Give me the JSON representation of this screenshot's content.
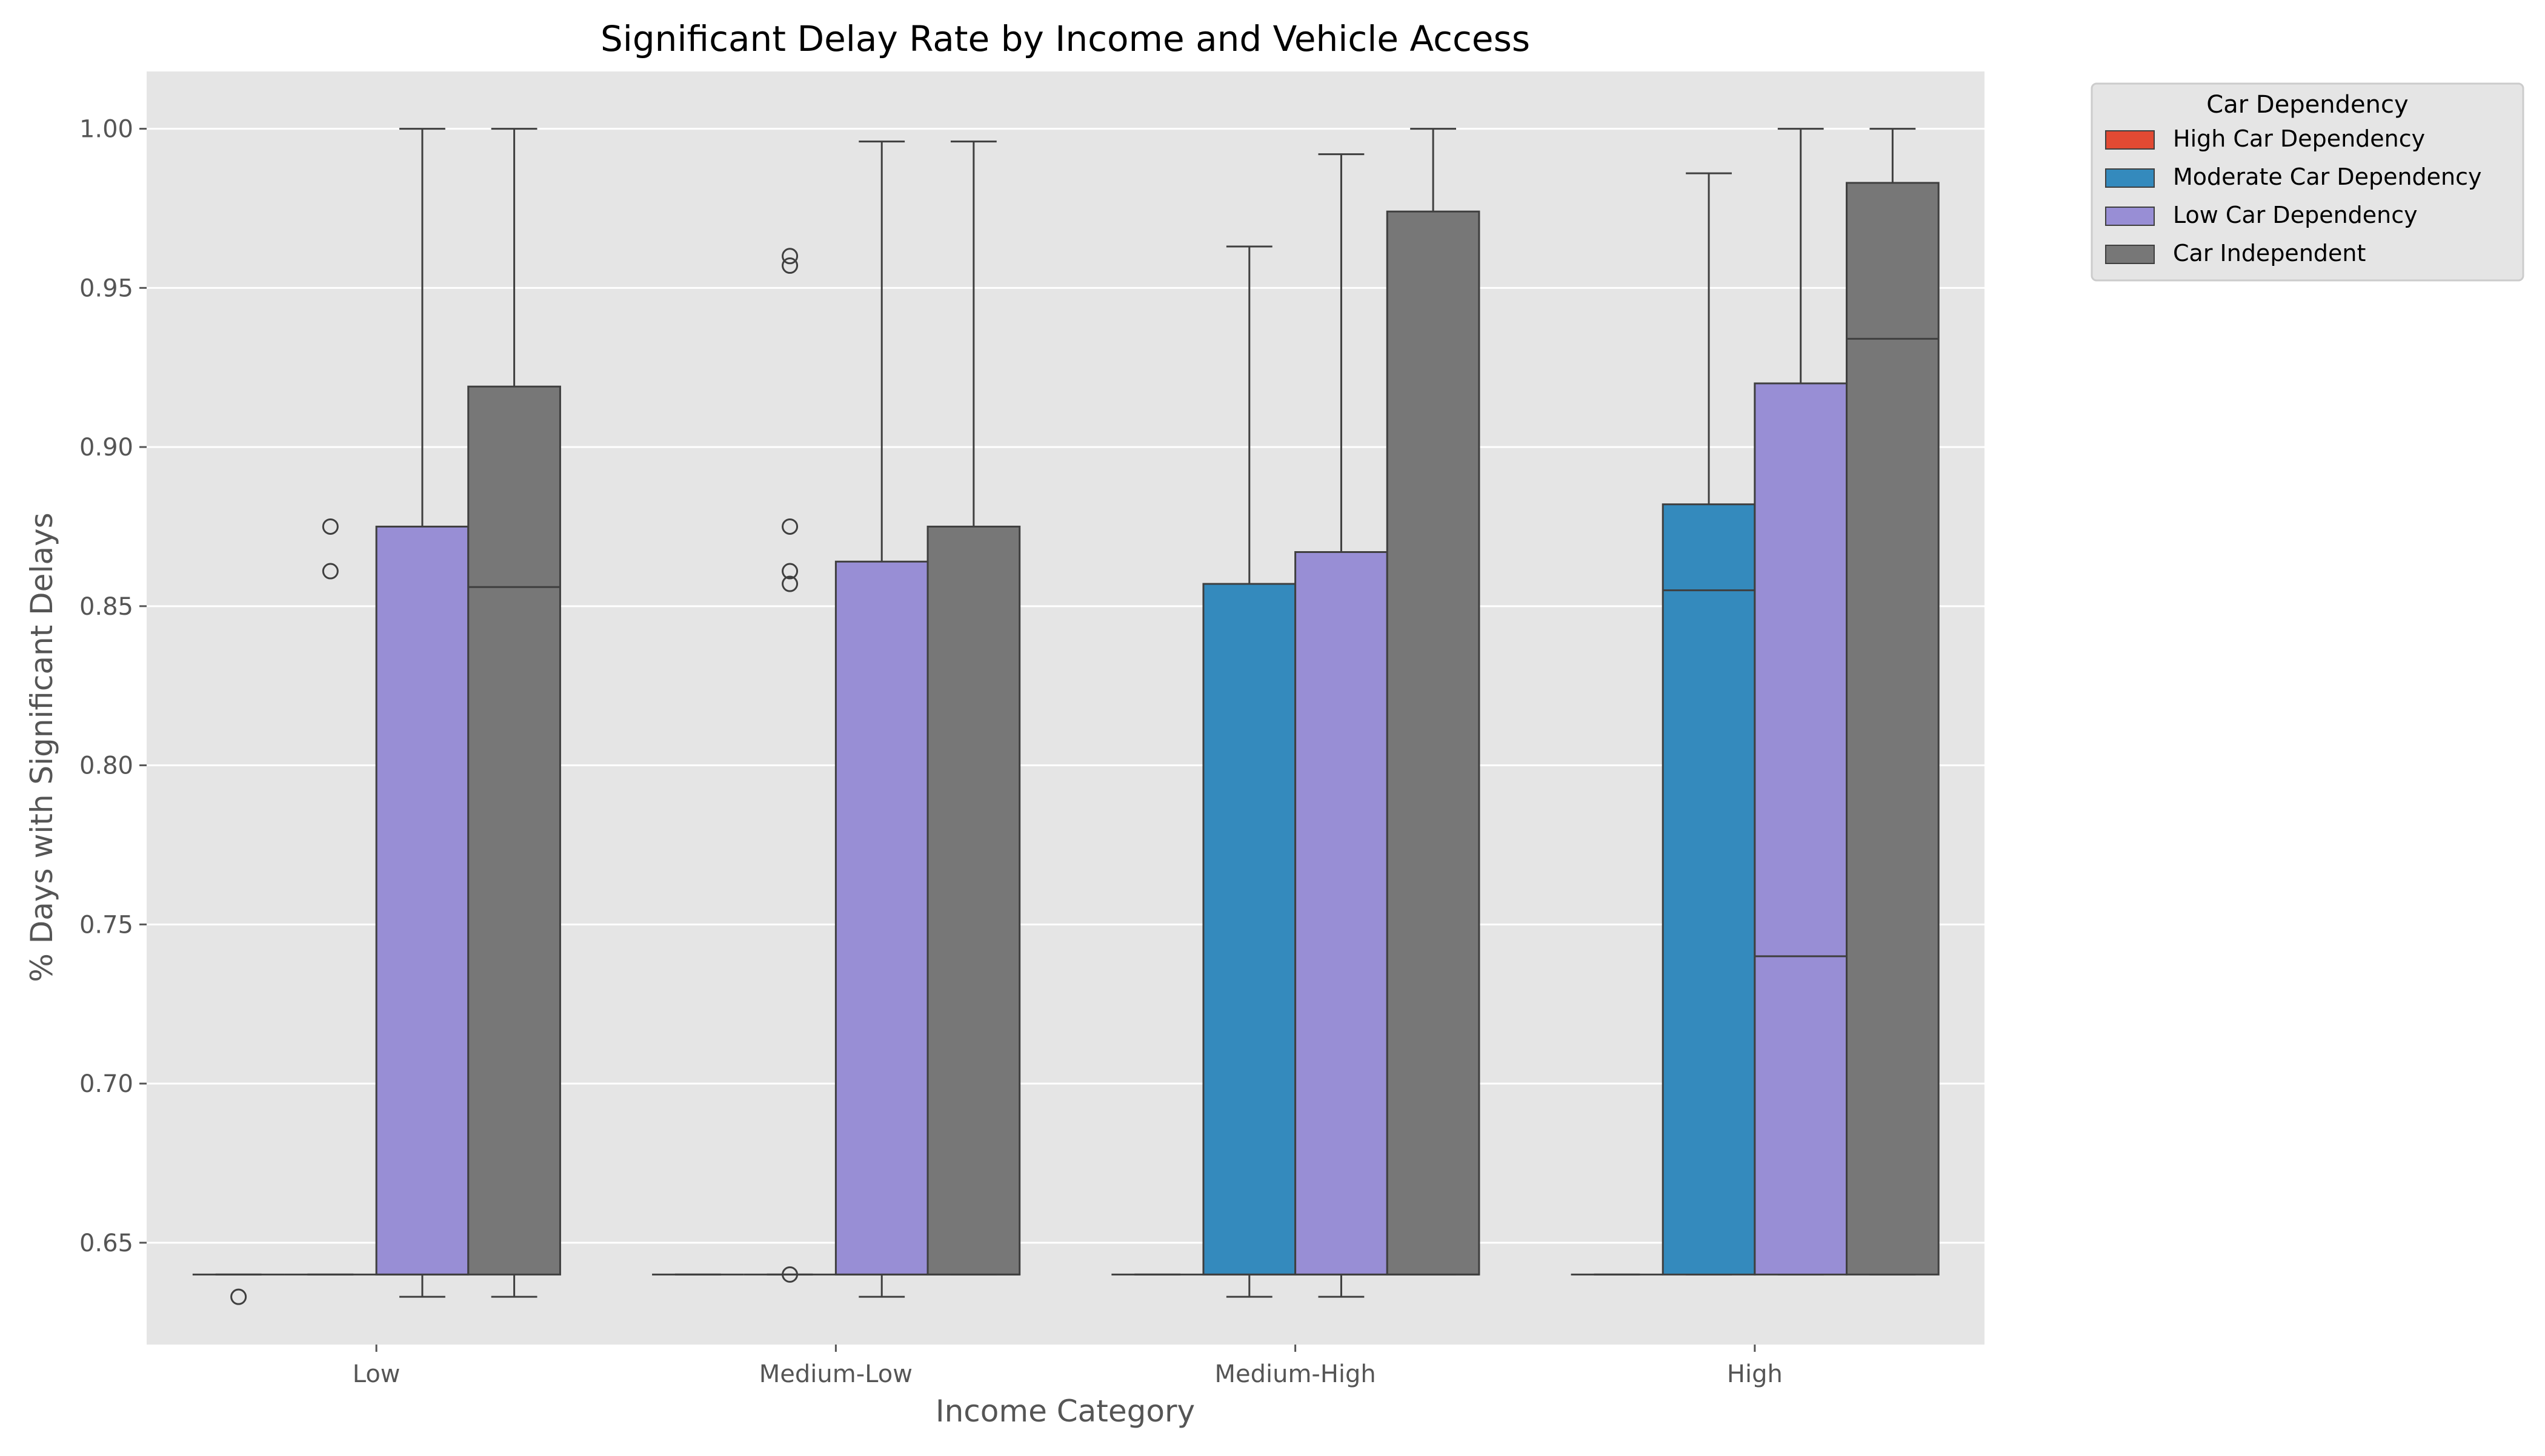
{
  "chart_data": {
    "type": "box",
    "title": "Significant Delay Rate by Income and Vehicle Access",
    "xlabel": "Income Category",
    "ylabel": "% Days with Significant Delays",
    "ylim": [
      0.618,
      1.018
    ],
    "yticks": [
      0.65,
      0.7,
      0.75,
      0.8,
      0.85,
      0.9,
      0.95,
      1.0
    ],
    "ytick_labels": [
      "0.65",
      "0.70",
      "0.75",
      "0.80",
      "0.85",
      "0.90",
      "0.95",
      "1.00"
    ],
    "grid": true,
    "categories": [
      "Low",
      "Medium-Low",
      "Medium-High",
      "High"
    ],
    "legend": {
      "title": "Car Dependency",
      "placement": "outside-top-right"
    },
    "series": [
      {
        "name": "High Car Dependency",
        "color": "#E24A33",
        "boxes": [
          {
            "whislo": 0.64,
            "q1": 0.64,
            "med": 0.64,
            "q3": 0.64,
            "whishi": 0.64,
            "fliers": [
              0.633
            ]
          },
          {
            "whislo": 0.64,
            "q1": 0.64,
            "med": 0.64,
            "q3": 0.64,
            "whishi": 0.64,
            "fliers": []
          },
          {
            "whislo": 0.64,
            "q1": 0.64,
            "med": 0.64,
            "q3": 0.64,
            "whishi": 0.64,
            "fliers": []
          },
          {
            "whislo": 0.64,
            "q1": 0.64,
            "med": 0.64,
            "q3": 0.64,
            "whishi": 0.64,
            "fliers": []
          }
        ]
      },
      {
        "name": "Moderate Car Dependency",
        "color": "#348ABD",
        "boxes": [
          {
            "whislo": 0.64,
            "q1": 0.64,
            "med": 0.64,
            "q3": 0.64,
            "whishi": 0.64,
            "fliers": [
              0.861,
              0.875
            ]
          },
          {
            "whislo": 0.64,
            "q1": 0.64,
            "med": 0.64,
            "q3": 0.64,
            "whishi": 0.64,
            "fliers": [
              0.64,
              0.857,
              0.861,
              0.875,
              0.957,
              0.96
            ]
          },
          {
            "whislo": 0.633,
            "q1": 0.64,
            "med": 0.64,
            "q3": 0.857,
            "whishi": 0.963,
            "fliers": []
          },
          {
            "whislo": 0.64,
            "q1": 0.64,
            "med": 0.855,
            "q3": 0.882,
            "whishi": 0.986,
            "fliers": []
          }
        ]
      },
      {
        "name": "Low Car Dependency",
        "color": "#988ED5",
        "boxes": [
          {
            "whislo": 0.633,
            "q1": 0.64,
            "med": 0.64,
            "q3": 0.875,
            "whishi": 1.0,
            "fliers": []
          },
          {
            "whislo": 0.633,
            "q1": 0.64,
            "med": 0.64,
            "q3": 0.864,
            "whishi": 0.996,
            "fliers": []
          },
          {
            "whislo": 0.633,
            "q1": 0.64,
            "med": 0.64,
            "q3": 0.867,
            "whishi": 0.992,
            "fliers": []
          },
          {
            "whislo": 0.64,
            "q1": 0.64,
            "med": 0.74,
            "q3": 0.92,
            "whishi": 1.0,
            "fliers": []
          }
        ]
      },
      {
        "name": "Car Independent",
        "color": "#777777",
        "boxes": [
          {
            "whislo": 0.633,
            "q1": 0.64,
            "med": 0.856,
            "q3": 0.919,
            "whishi": 1.0,
            "fliers": []
          },
          {
            "whislo": 0.64,
            "q1": 0.64,
            "med": 0.64,
            "q3": 0.875,
            "whishi": 0.996,
            "fliers": []
          },
          {
            "whislo": 0.64,
            "q1": 0.64,
            "med": 0.64,
            "q3": 0.974,
            "whishi": 1.0,
            "fliers": []
          },
          {
            "whislo": 0.64,
            "q1": 0.64,
            "med": 0.934,
            "q3": 0.983,
            "whishi": 1.0,
            "fliers": []
          }
        ]
      }
    ]
  }
}
